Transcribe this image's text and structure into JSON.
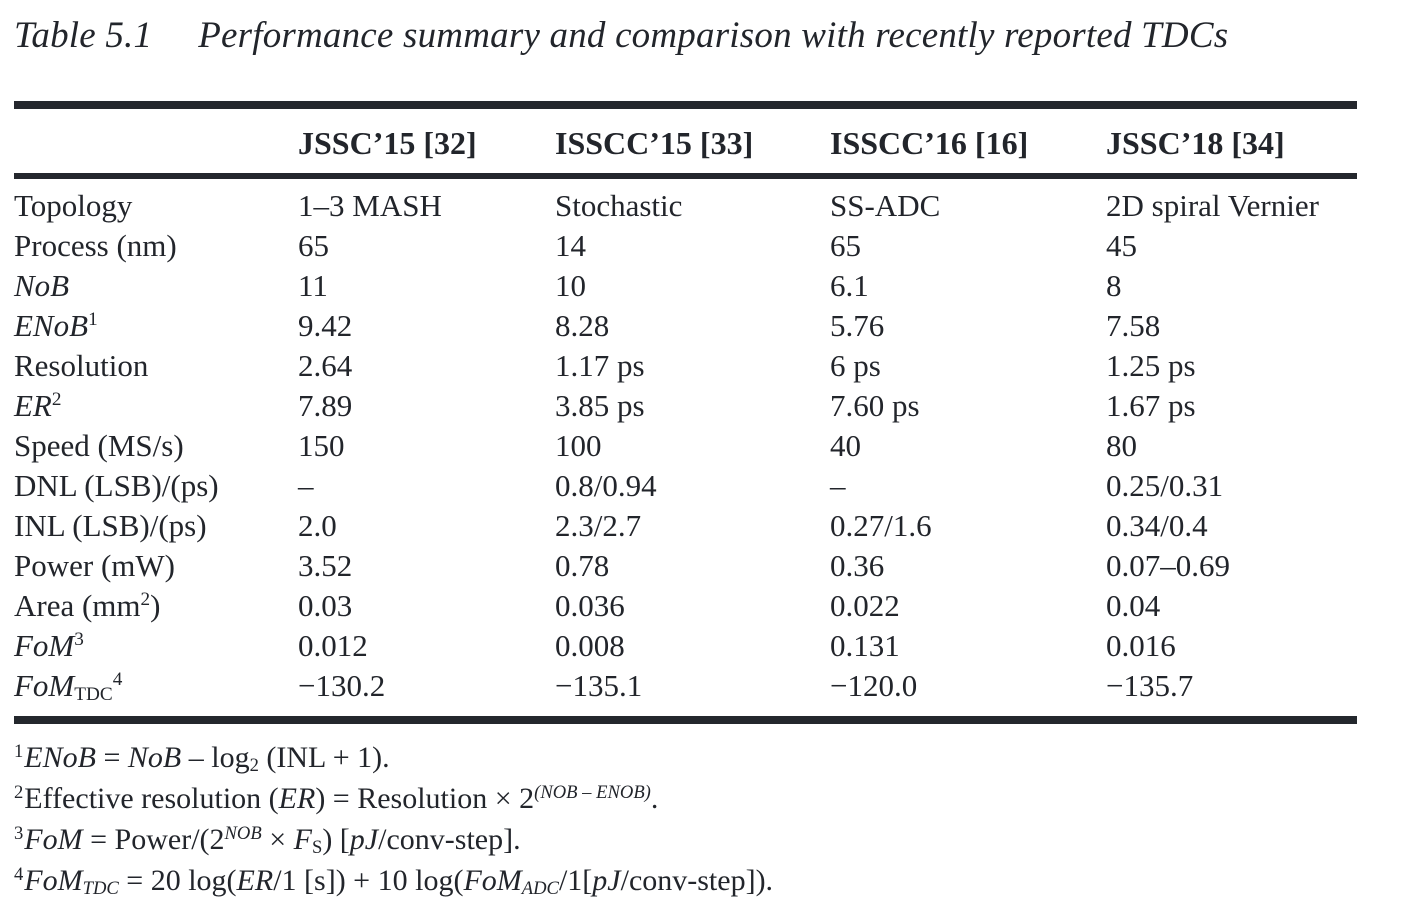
{
  "colors": {
    "ink": "#22252b",
    "rule": "#24272d",
    "background": "#ffffff"
  },
  "title": {
    "label": "Table 5.1",
    "caption": "Performance summary and comparison with recently reported TDCs"
  },
  "table": {
    "columns": [
      "",
      "JSSC’15 [32]",
      "ISSCC’15 [33]",
      "ISSCC’16 [16]",
      "JSSC’18 [34]"
    ],
    "rows": [
      {
        "label": [
          {
            "t": "Topology"
          }
        ],
        "values": [
          "1–3 MASH",
          "Stochastic",
          "SS-ADC",
          "2D spiral Vernier"
        ]
      },
      {
        "label": [
          {
            "t": "Process (nm)"
          }
        ],
        "values": [
          "65",
          "14",
          "65",
          "45"
        ]
      },
      {
        "label": [
          {
            "t": "NoB",
            "s": "i"
          }
        ],
        "values": [
          "11",
          "10",
          "6.1",
          "8"
        ]
      },
      {
        "label": [
          {
            "t": "ENoB",
            "s": "i"
          },
          {
            "t": "1",
            "s": "sup"
          }
        ],
        "values": [
          "9.42",
          "8.28",
          "5.76",
          "7.58"
        ]
      },
      {
        "label": [
          {
            "t": "Resolution"
          }
        ],
        "values": [
          "2.64",
          "1.17 ps",
          "6 ps",
          "1.25 ps"
        ]
      },
      {
        "label": [
          {
            "t": "ER",
            "s": "i"
          },
          {
            "t": "2",
            "s": "sup"
          }
        ],
        "values": [
          "7.89",
          "3.85 ps",
          "7.60 ps",
          "1.67 ps"
        ]
      },
      {
        "label": [
          {
            "t": "Speed (MS/s)"
          }
        ],
        "values": [
          "150",
          "100",
          "40",
          "80"
        ]
      },
      {
        "label": [
          {
            "t": "DNL (LSB)/(ps)"
          }
        ],
        "values": [
          "–",
          "0.8/0.94",
          "–",
          "0.25/0.31"
        ]
      },
      {
        "label": [
          {
            "t": "INL (LSB)/(ps)"
          }
        ],
        "values": [
          "2.0",
          "2.3/2.7",
          "0.27/1.6",
          "0.34/0.4"
        ]
      },
      {
        "label": [
          {
            "t": "Power (mW)"
          }
        ],
        "values": [
          "3.52",
          "0.78",
          "0.36",
          "0.07–0.69"
        ]
      },
      {
        "label": [
          {
            "t": "Area (mm"
          },
          {
            "t": "2",
            "s": "sup"
          },
          {
            "t": ")"
          }
        ],
        "values": [
          "0.03",
          "0.036",
          "0.022",
          "0.04"
        ]
      },
      {
        "label": [
          {
            "t": "FoM",
            "s": "i"
          },
          {
            "t": "3",
            "s": "sup"
          }
        ],
        "values": [
          "0.012",
          "0.008",
          "0.131",
          "0.016"
        ]
      },
      {
        "label": [
          {
            "t": "FoM",
            "s": "i"
          },
          {
            "t": "TDC",
            "s": "sub"
          },
          {
            "t": "4",
            "s": "sup"
          }
        ],
        "values": [
          "−130.2",
          "−135.1",
          "−120.0",
          "−135.7"
        ]
      }
    ]
  },
  "footnotes": [
    [
      {
        "t": "1",
        "s": "sup"
      },
      {
        "t": "ENoB",
        "s": "i"
      },
      {
        "t": " = "
      },
      {
        "t": "NoB",
        "s": "i"
      },
      {
        "t": " – log"
      },
      {
        "t": "2",
        "s": "sub"
      },
      {
        "t": " (INL + 1)."
      }
    ],
    [
      {
        "t": "2",
        "s": "sup"
      },
      {
        "t": "Effective resolution ("
      },
      {
        "t": "ER",
        "s": "i"
      },
      {
        "t": ") = Resolution × 2"
      },
      {
        "t": "(NOB – ENOB)",
        "s": "isup"
      },
      {
        "t": "."
      }
    ],
    [
      {
        "t": "3",
        "s": "sup"
      },
      {
        "t": "FoM",
        "s": "i"
      },
      {
        "t": " = Power/(2"
      },
      {
        "t": "NOB",
        "s": "isup"
      },
      {
        "t": " × "
      },
      {
        "t": "F",
        "s": "i"
      },
      {
        "t": "S",
        "s": "sub"
      },
      {
        "t": ") ["
      },
      {
        "t": "pJ",
        "s": "i"
      },
      {
        "t": "/conv-step]."
      }
    ],
    [
      {
        "t": "4",
        "s": "sup"
      },
      {
        "t": "FoM",
        "s": "i"
      },
      {
        "t": "TDC",
        "s": "isub"
      },
      {
        "t": " = 20 log("
      },
      {
        "t": "ER",
        "s": "i"
      },
      {
        "t": "/1 [s]) + 10 log("
      },
      {
        "t": "FoM",
        "s": "i"
      },
      {
        "t": "ADC",
        "s": "isub"
      },
      {
        "t": "/1["
      },
      {
        "t": "pJ",
        "s": "i"
      },
      {
        "t": "/conv-step])."
      }
    ]
  ]
}
